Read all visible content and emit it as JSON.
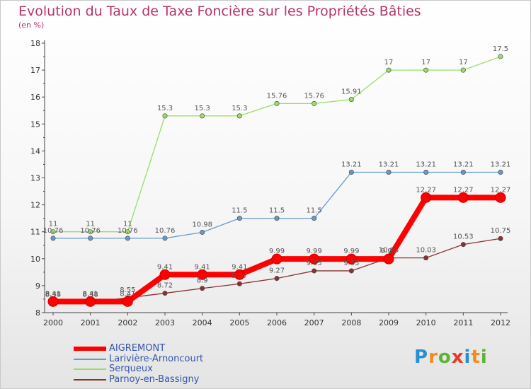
{
  "header": {
    "title": "Evolution du Taux de Taxe Foncière sur les Propriétés Bâties",
    "unit": "(en %)"
  },
  "logo_text": "Proxiti",
  "chart_data": {
    "type": "line",
    "title": "Evolution du Taux de Taxe Foncière sur les Propriétés Bâties",
    "ylabel": "(en %)",
    "xlabel": "",
    "x": [
      "2000",
      "2001",
      "2002",
      "2003",
      "2004",
      "2005",
      "2006",
      "2007",
      "2008",
      "2009",
      "2010",
      "2011",
      "2012"
    ],
    "ylim": [
      8,
      18
    ],
    "yticks": [
      "8",
      "9",
      "10",
      "11",
      "12",
      "13",
      "14",
      "15",
      "16",
      "17",
      "18"
    ],
    "grid": false,
    "legend_position": "bottom-left",
    "series": [
      {
        "name": "AIGREMONT",
        "color": "#ff0000",
        "emphasis": true,
        "values": [
          8.41,
          8.41,
          8.41,
          9.41,
          9.41,
          9.41,
          9.99,
          9.99,
          9.99,
          9.99,
          12.27,
          12.27,
          12.27
        ],
        "labels": [
          "8.41",
          "8.41",
          "8.41",
          "9.41",
          "9.41",
          "9.41",
          "9.99",
          "9.99",
          "9.99",
          "9.99",
          "12.27",
          "12.27",
          "12.27"
        ]
      },
      {
        "name": "Larivière-Arnoncourt",
        "color": "#6699cc",
        "values": [
          10.76,
          10.76,
          10.76,
          10.76,
          10.98,
          11.5,
          11.5,
          11.5,
          13.21,
          13.21,
          13.21,
          13.21,
          13.21
        ],
        "labels": [
          "10.76",
          "10.76",
          "10.76",
          "10.76",
          "10.98",
          "11.5",
          "11.5",
          "11.5",
          "13.21",
          "13.21",
          "13.21",
          "13.21",
          "13.21"
        ]
      },
      {
        "name": "Serqueux",
        "color": "#99dd66",
        "values": [
          11,
          11,
          11,
          15.3,
          15.3,
          15.3,
          15.76,
          15.76,
          15.91,
          17,
          17,
          17,
          17.5
        ],
        "labels": [
          "11",
          "11",
          "11",
          "15.3",
          "15.3",
          "15.3",
          "15.76",
          "15.76",
          "15.91",
          "17",
          "17",
          "17",
          "17.5"
        ]
      },
      {
        "name": "Parnoy-en-Bassigny",
        "color": "#883333",
        "values": [
          8.38,
          8.38,
          8.55,
          8.72,
          8.9,
          9.07,
          9.27,
          9.55,
          9.55,
          10.03,
          10.03,
          10.53,
          10.75
        ],
        "labels": [
          "8.38",
          "8.38",
          "8.55",
          "8.72",
          "8.9",
          "9.07",
          "9.27",
          "9.55",
          "9.55",
          "10.03",
          "10.03",
          "10.53",
          "10.75"
        ]
      }
    ]
  }
}
